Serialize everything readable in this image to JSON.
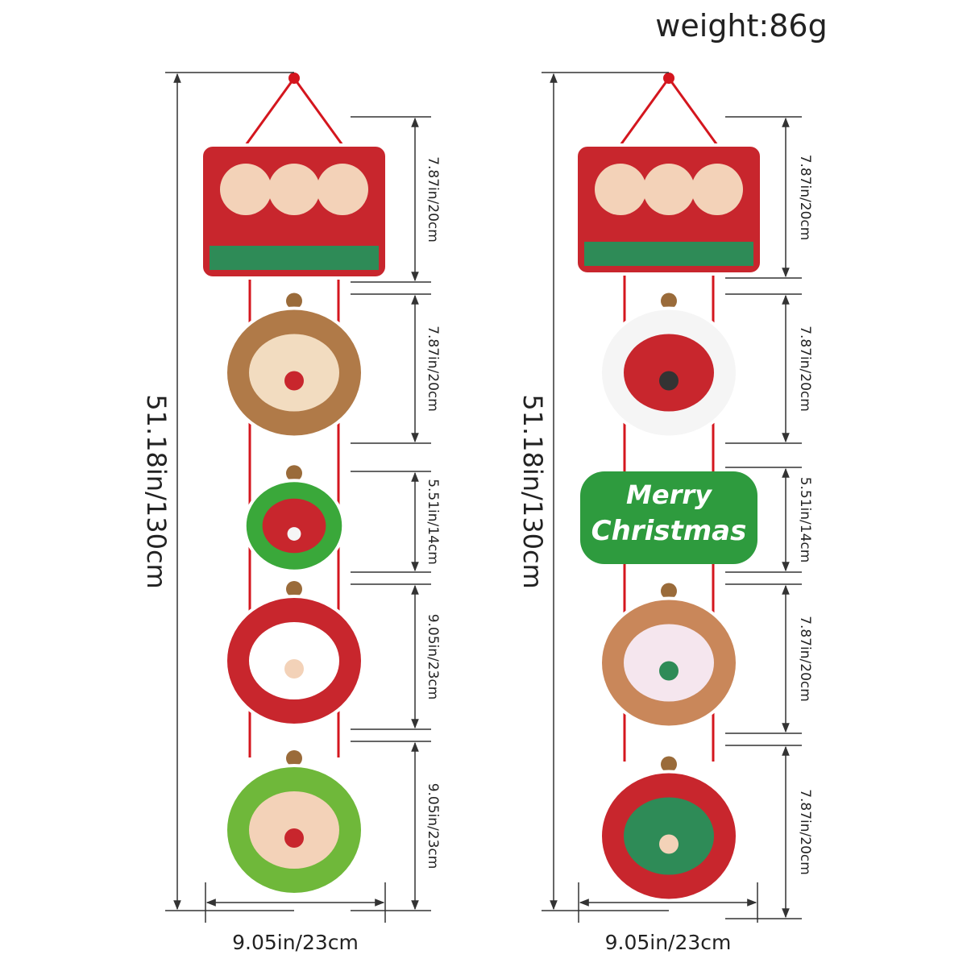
{
  "header": {
    "weight": "weight:86g"
  },
  "strands": [
    {
      "total_length": "51.18in/130cm",
      "width": "9.05in/23cm",
      "pieces": [
        {
          "size": "7.87in/20cm"
        },
        {
          "size": "7.87in/20cm"
        },
        {
          "size": "5.51in/14cm"
        },
        {
          "size": "9.05in/23cm"
        },
        {
          "size": "9.05in/23cm"
        }
      ]
    },
    {
      "total_length": "51.18in/130cm",
      "width": "9.05in/23cm",
      "pieces": [
        {
          "size": "7.87in/20cm"
        },
        {
          "size": "7.87in/20cm"
        },
        {
          "size": "5.51in/14cm",
          "text": [
            "Merry",
            "Christmas"
          ]
        },
        {
          "size": "7.87in/20cm"
        },
        {
          "size": "7.87in/20cm"
        }
      ]
    }
  ]
}
